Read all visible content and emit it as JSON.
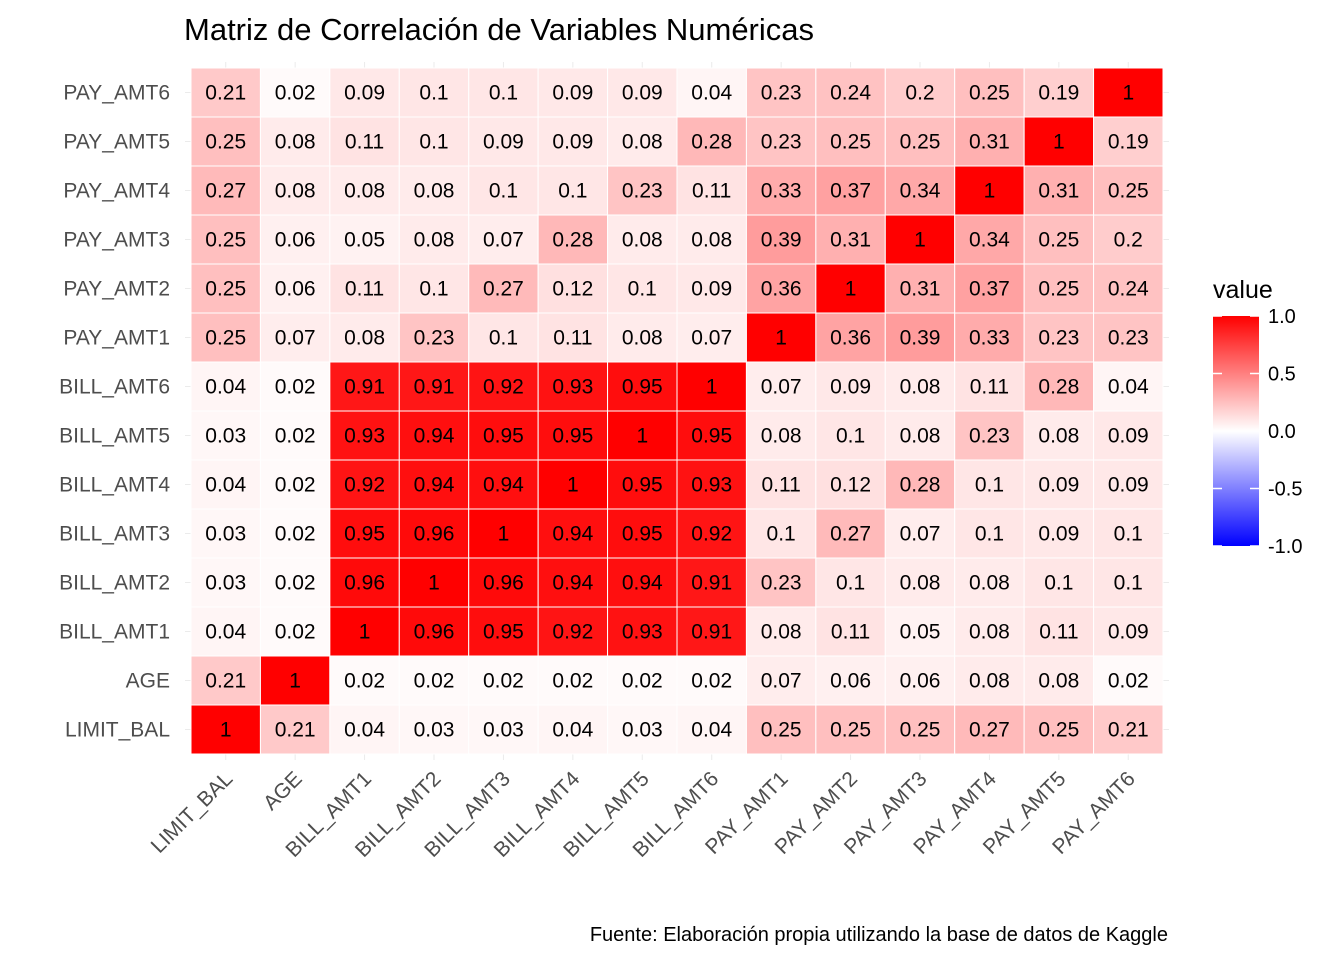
{
  "chart_data": {
    "type": "heatmap",
    "title": "Matriz de Correlación de Variables Numéricas",
    "caption": "Fuente: Elaboración propia utilizando la base de datos de Kaggle",
    "xlabel": "",
    "ylabel": "",
    "categories": [
      "LIMIT_BAL",
      "AGE",
      "BILL_AMT1",
      "BILL_AMT2",
      "BILL_AMT3",
      "BILL_AMT4",
      "BILL_AMT5",
      "BILL_AMT6",
      "PAY_AMT1",
      "PAY_AMT2",
      "PAY_AMT3",
      "PAY_AMT4",
      "PAY_AMT5",
      "PAY_AMT6"
    ],
    "values": [
      [
        1,
        0.21,
        0.04,
        0.03,
        0.03,
        0.04,
        0.03,
        0.04,
        0.25,
        0.25,
        0.25,
        0.27,
        0.25,
        0.21
      ],
      [
        0.21,
        1,
        0.02,
        0.02,
        0.02,
        0.02,
        0.02,
        0.02,
        0.07,
        0.06,
        0.06,
        0.08,
        0.08,
        0.02
      ],
      [
        0.04,
        0.02,
        1,
        0.96,
        0.95,
        0.92,
        0.93,
        0.91,
        0.08,
        0.11,
        0.05,
        0.08,
        0.11,
        0.09
      ],
      [
        0.03,
        0.02,
        0.96,
        1,
        0.96,
        0.94,
        0.94,
        0.91,
        0.23,
        0.1,
        0.08,
        0.08,
        0.1,
        0.1
      ],
      [
        0.03,
        0.02,
        0.95,
        0.96,
        1,
        0.94,
        0.95,
        0.92,
        0.1,
        0.27,
        0.07,
        0.1,
        0.09,
        0.1
      ],
      [
        0.04,
        0.02,
        0.92,
        0.94,
        0.94,
        1,
        0.95,
        0.93,
        0.11,
        0.12,
        0.28,
        0.1,
        0.09,
        0.09
      ],
      [
        0.03,
        0.02,
        0.93,
        0.94,
        0.95,
        0.95,
        1,
        0.95,
        0.08,
        0.1,
        0.08,
        0.23,
        0.08,
        0.09
      ],
      [
        0.04,
        0.02,
        0.91,
        0.91,
        0.92,
        0.93,
        0.95,
        1,
        0.07,
        0.09,
        0.08,
        0.11,
        0.28,
        0.04
      ],
      [
        0.25,
        0.07,
        0.08,
        0.23,
        0.1,
        0.11,
        0.08,
        0.07,
        1,
        0.36,
        0.39,
        0.33,
        0.23,
        0.23
      ],
      [
        0.25,
        0.06,
        0.11,
        0.1,
        0.27,
        0.12,
        0.1,
        0.09,
        0.36,
        1,
        0.31,
        0.37,
        0.25,
        0.24
      ],
      [
        0.25,
        0.06,
        0.05,
        0.08,
        0.07,
        0.28,
        0.08,
        0.08,
        0.39,
        0.31,
        1,
        0.34,
        0.25,
        0.2
      ],
      [
        0.27,
        0.08,
        0.08,
        0.08,
        0.1,
        0.1,
        0.23,
        0.11,
        0.33,
        0.37,
        0.34,
        1,
        0.31,
        0.25
      ],
      [
        0.25,
        0.08,
        0.11,
        0.1,
        0.09,
        0.09,
        0.08,
        0.28,
        0.23,
        0.25,
        0.25,
        0.31,
        1,
        0.19
      ],
      [
        0.21,
        0.02,
        0.09,
        0.1,
        0.1,
        0.09,
        0.09,
        0.04,
        0.23,
        0.24,
        0.2,
        0.25,
        0.19,
        1
      ]
    ],
    "legend": {
      "title": "value",
      "range": [
        -1.0,
        1.0
      ],
      "ticks": [
        1.0,
        0.5,
        0.0,
        -0.5,
        -1.0
      ],
      "tick_labels": [
        "1.0",
        "0.5",
        "0.0",
        "-0.5",
        "-1.0"
      ],
      "low_color": "#0000ff",
      "mid_color": "#ffffff",
      "high_color": "#ff0000",
      "placement": "right"
    },
    "grid": true
  }
}
